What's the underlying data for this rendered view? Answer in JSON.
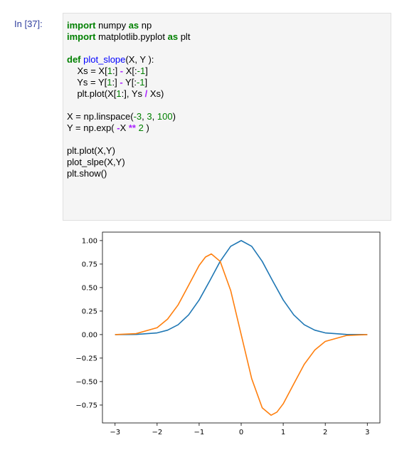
{
  "cell": {
    "prompt": "In [37]:",
    "code": {
      "l1": {
        "kw1": "import",
        "mod": " numpy ",
        "kw2": "as",
        "alias": " np"
      },
      "l2": {
        "kw1": "import",
        "mod": " matplotlib.pyplot ",
        "kw2": "as",
        "alias": " plt"
      },
      "l4": {
        "kw": "def",
        "sp": " ",
        "fname": "plot_slope",
        "rest": "(X, Y ):"
      },
      "l5": {
        "a": "    Xs = X[",
        "n1": "1",
        "b": ":] ",
        "op": "-",
        "c": " X[:",
        "n2": "-1",
        "d": "]"
      },
      "l6": {
        "a": "    Ys = Y[",
        "n1": "1",
        "b": ":] ",
        "op": "-",
        "c": " Y[:",
        "n2": "-1",
        "d": "]"
      },
      "l7": {
        "a": "    plt.plot(X[",
        "n1": "1",
        "b": ":], Ys ",
        "op": "/",
        "c": " Xs)"
      },
      "l9": {
        "a": "X = np.linspace(",
        "n1": "-3",
        "b": ", ",
        "n2": "3",
        "c": ", ",
        "n3": "100",
        "d": ")"
      },
      "l10": {
        "a": "Y = np.exp( ",
        "op1": "-",
        "b": "X ",
        "op2": "**",
        "c": " ",
        "n1": "2",
        "d": " )"
      },
      "l12": "plt.plot(X,Y)",
      "l13": "plot_slpe(X,Y)",
      "l14": "plt.show()"
    }
  },
  "chart_data": {
    "type": "line",
    "xlim": [
      -3.3,
      3.3
    ],
    "ylim": [
      -0.94,
      1.09
    ],
    "xticks": [
      -3,
      -2,
      -1,
      0,
      1,
      2,
      3
    ],
    "xtick_labels": [
      "−3",
      "−2",
      "−1",
      "0",
      "1",
      "2",
      "3"
    ],
    "yticks": [
      1.0,
      0.75,
      0.5,
      0.25,
      0.0,
      -0.25,
      -0.5,
      -0.75
    ],
    "ytick_labels": [
      "1.00",
      "0.75",
      "0.50",
      "0.25",
      "0.00",
      "−0.25",
      "−0.50",
      "−0.75"
    ],
    "grid": false,
    "series": [
      {
        "color": "#1f77b4",
        "x": [
          -3.0,
          -2.5,
          -2.0,
          -1.75,
          -1.5,
          -1.25,
          -1.0,
          -0.75,
          -0.5,
          -0.25,
          0.0,
          0.25,
          0.5,
          0.75,
          1.0,
          1.25,
          1.5,
          1.75,
          2.0,
          2.5,
          3.0
        ],
        "y": [
          0.0,
          0.002,
          0.018,
          0.047,
          0.105,
          0.21,
          0.368,
          0.57,
          0.779,
          0.939,
          1.0,
          0.939,
          0.779,
          0.57,
          0.368,
          0.21,
          0.105,
          0.047,
          0.018,
          0.002,
          0.0
        ]
      },
      {
        "color": "#ff7f0e",
        "x": [
          -3.0,
          -2.5,
          -2.0,
          -1.75,
          -1.5,
          -1.25,
          -1.0,
          -0.85,
          -0.71,
          -0.5,
          -0.25,
          0.0,
          0.25,
          0.5,
          0.71,
          0.85,
          1.0,
          1.25,
          1.5,
          1.75,
          2.0,
          2.5,
          3.0
        ],
        "y": [
          0.0,
          0.01,
          0.073,
          0.165,
          0.316,
          0.525,
          0.736,
          0.825,
          0.858,
          0.779,
          0.469,
          0.0,
          -0.469,
          -0.779,
          -0.858,
          -0.825,
          -0.736,
          -0.525,
          -0.316,
          -0.165,
          -0.073,
          -0.01,
          0.0
        ]
      }
    ]
  }
}
